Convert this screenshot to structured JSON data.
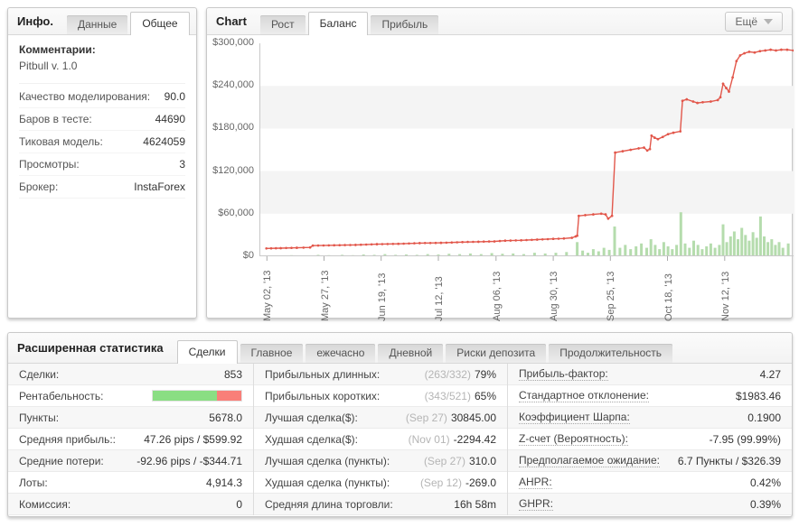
{
  "colors": {
    "balance_line": "#e2574b",
    "profit_bars": "#b5dcad",
    "band_gray": "#f4f4f4",
    "profitability_green": "#8ade83",
    "profitability_red": "#f97f79",
    "axis_line": "#c9c9c9"
  },
  "info_panel": {
    "title": "Инфо.",
    "tabs": [
      {
        "label": "Данные",
        "slug": "data",
        "active": false
      },
      {
        "label": "Общее",
        "slug": "general",
        "active": true
      }
    ],
    "comments_label": "Комментарии:",
    "comments_value": "Pitbull v. 1.0",
    "rows": [
      {
        "slug": "modeling-quality",
        "label": "Качество моделирования:",
        "value": "90.0"
      },
      {
        "slug": "bars-in-test",
        "label": "Баров в тесте:",
        "value": "44690"
      },
      {
        "slug": "tick-model",
        "label": "Тиковая модель:",
        "value": "4624059"
      },
      {
        "slug": "views",
        "label": "Просмотры:",
        "value": "3"
      },
      {
        "slug": "broker",
        "label": "Брокер:",
        "value": "InstaForex"
      }
    ]
  },
  "chart_panel": {
    "title": "Chart",
    "tabs": [
      {
        "label": "Рост",
        "slug": "growth",
        "active": false
      },
      {
        "label": "Баланс",
        "slug": "balance",
        "active": true
      },
      {
        "label": "Прибыль",
        "slug": "profit",
        "active": false
      }
    ],
    "more_button": {
      "label": "Ещё"
    }
  },
  "chart_data": {
    "type": "line",
    "title": "Баланс",
    "ylim": [
      0,
      300000
    ],
    "grid": "alternating horizontal bands",
    "legend": "none",
    "y_ticks": [
      {
        "label": "$300,000",
        "v": 300
      },
      {
        "label": "$240,000",
        "v": 240
      },
      {
        "label": "$180,000",
        "v": 180
      },
      {
        "label": "$120,000",
        "v": 120
      },
      {
        "label": "$60,000",
        "v": 60
      },
      {
        "label": "$0",
        "v": 0
      }
    ],
    "bands_k": [
      [
        240,
        180
      ],
      [
        120,
        60
      ]
    ],
    "x_ticks": [
      {
        "label": "May 02, '13",
        "f": 0.014
      },
      {
        "label": "May 27, '13",
        "f": 0.121
      },
      {
        "label": "Jun 19, '13",
        "f": 0.228
      },
      {
        "label": "Jul 12, '13",
        "f": 0.335
      },
      {
        "label": "Aug 06, '13",
        "f": 0.443
      },
      {
        "label": "Aug 30, '13",
        "f": 0.55
      },
      {
        "label": "Sep 25, '13",
        "f": 0.657
      },
      {
        "label": "Oct 18, '13",
        "f": 0.764
      },
      {
        "label": "Nov 12, '13",
        "f": 0.871
      }
    ],
    "series": [
      {
        "name": "balance-line",
        "unit": "USD_thousands",
        "points_k": [
          [
            0.013,
            11
          ],
          [
            0.04,
            11.5
          ],
          [
            0.07,
            12
          ],
          [
            0.095,
            12.5
          ],
          [
            0.1,
            15
          ],
          [
            0.14,
            15.5
          ],
          [
            0.18,
            16
          ],
          [
            0.22,
            17
          ],
          [
            0.26,
            17.5
          ],
          [
            0.3,
            18.5
          ],
          [
            0.34,
            19
          ],
          [
            0.38,
            20
          ],
          [
            0.41,
            20.5
          ],
          [
            0.44,
            21
          ],
          [
            0.46,
            22
          ],
          [
            0.49,
            22.5
          ],
          [
            0.52,
            23.5
          ],
          [
            0.55,
            24.5
          ],
          [
            0.57,
            25
          ],
          [
            0.585,
            26
          ],
          [
            0.592,
            28
          ],
          [
            0.595,
            29
          ],
          [
            0.598,
            57
          ],
          [
            0.61,
            58
          ],
          [
            0.625,
            59
          ],
          [
            0.64,
            60
          ],
          [
            0.648,
            59
          ],
          [
            0.653,
            53
          ],
          [
            0.66,
            57
          ],
          [
            0.666,
            146
          ],
          [
            0.68,
            148
          ],
          [
            0.695,
            150
          ],
          [
            0.71,
            152
          ],
          [
            0.72,
            153
          ],
          [
            0.726,
            149
          ],
          [
            0.731,
            151
          ],
          [
            0.734,
            170
          ],
          [
            0.74,
            167
          ],
          [
            0.746,
            165
          ],
          [
            0.755,
            168
          ],
          [
            0.765,
            172
          ],
          [
            0.775,
            174
          ],
          [
            0.788,
            176
          ],
          [
            0.792,
            219
          ],
          [
            0.8,
            221
          ],
          [
            0.812,
            218
          ],
          [
            0.82,
            216
          ],
          [
            0.83,
            217
          ],
          [
            0.845,
            218
          ],
          [
            0.858,
            220
          ],
          [
            0.863,
            224
          ],
          [
            0.868,
            243
          ],
          [
            0.874,
            237
          ],
          [
            0.879,
            232
          ],
          [
            0.886,
            252
          ],
          [
            0.893,
            275
          ],
          [
            0.9,
            283
          ],
          [
            0.908,
            286
          ],
          [
            0.917,
            288
          ],
          [
            0.927,
            287
          ],
          [
            0.937,
            289
          ],
          [
            0.947,
            290
          ],
          [
            0.957,
            291
          ],
          [
            0.967,
            290
          ],
          [
            0.977,
            291
          ],
          [
            0.988,
            291
          ],
          [
            1.0,
            290
          ]
        ]
      },
      {
        "name": "profit-bars",
        "unit": "USD_thousands",
        "points_k": [
          [
            0.03,
            1
          ],
          [
            0.06,
            1.5
          ],
          [
            0.09,
            1
          ],
          [
            0.11,
            2
          ],
          [
            0.13,
            1.5
          ],
          [
            0.155,
            2
          ],
          [
            0.175,
            1.5
          ],
          [
            0.195,
            2.5
          ],
          [
            0.215,
            2
          ],
          [
            0.235,
            3
          ],
          [
            0.255,
            2
          ],
          [
            0.275,
            2.5
          ],
          [
            0.295,
            2
          ],
          [
            0.315,
            3
          ],
          [
            0.335,
            2.5
          ],
          [
            0.355,
            3.5
          ],
          [
            0.375,
            3
          ],
          [
            0.395,
            4
          ],
          [
            0.415,
            3
          ],
          [
            0.435,
            4.5
          ],
          [
            0.455,
            3.5
          ],
          [
            0.475,
            4
          ],
          [
            0.495,
            3
          ],
          [
            0.515,
            5
          ],
          [
            0.535,
            4
          ],
          [
            0.555,
            5
          ],
          [
            0.575,
            6
          ],
          [
            0.595,
            20
          ],
          [
            0.605,
            8
          ],
          [
            0.615,
            5
          ],
          [
            0.625,
            10
          ],
          [
            0.635,
            7
          ],
          [
            0.645,
            12
          ],
          [
            0.655,
            9
          ],
          [
            0.665,
            42
          ],
          [
            0.675,
            12
          ],
          [
            0.685,
            16
          ],
          [
            0.695,
            10
          ],
          [
            0.705,
            14
          ],
          [
            0.715,
            18
          ],
          [
            0.725,
            12
          ],
          [
            0.733,
            24
          ],
          [
            0.741,
            16
          ],
          [
            0.749,
            10
          ],
          [
            0.757,
            20
          ],
          [
            0.765,
            14
          ],
          [
            0.773,
            10
          ],
          [
            0.781,
            16
          ],
          [
            0.789,
            62
          ],
          [
            0.797,
            18
          ],
          [
            0.805,
            12
          ],
          [
            0.813,
            22
          ],
          [
            0.821,
            16
          ],
          [
            0.829,
            10
          ],
          [
            0.837,
            14
          ],
          [
            0.845,
            18
          ],
          [
            0.853,
            12
          ],
          [
            0.861,
            16
          ],
          [
            0.868,
            45
          ],
          [
            0.875,
            20
          ],
          [
            0.882,
            28
          ],
          [
            0.889,
            35
          ],
          [
            0.896,
            24
          ],
          [
            0.903,
            40
          ],
          [
            0.91,
            30
          ],
          [
            0.917,
            22
          ],
          [
            0.924,
            34
          ],
          [
            0.931,
            26
          ],
          [
            0.938,
            56
          ],
          [
            0.945,
            28
          ],
          [
            0.952,
            20
          ],
          [
            0.959,
            24
          ],
          [
            0.966,
            16
          ],
          [
            0.973,
            20
          ],
          [
            0.98,
            12
          ],
          [
            0.99,
            18
          ]
        ]
      }
    ]
  },
  "stats_panel": {
    "title": "Расширенная статистика",
    "tabs": [
      {
        "label": "Сделки",
        "slug": "trades",
        "active": true
      },
      {
        "label": "Главное",
        "slug": "main",
        "active": false
      },
      {
        "label": "ежечасно",
        "slug": "hourly",
        "active": false
      },
      {
        "label": "Дневной",
        "slug": "daily",
        "active": false
      },
      {
        "label": "Риски депозита",
        "slug": "deposit-risks",
        "active": false
      },
      {
        "label": "Продолжительность",
        "slug": "duration",
        "active": false
      }
    ],
    "columns": {
      "left": [
        {
          "slug": "trades",
          "label": "Сделки:",
          "value": "853"
        },
        {
          "slug": "profitability",
          "label": "Рентабельность:",
          "bar": {
            "green_pct": 72,
            "red_pct": 28
          }
        },
        {
          "slug": "points",
          "label": "Пункты:",
          "value": "5678.0"
        },
        {
          "slug": "avg-profit",
          "label": "Средняя прибыль::",
          "value": "47.26 pips / $599.92"
        },
        {
          "slug": "avg-loss",
          "label": "Средние потери:",
          "value": "-92.96 pips / -$344.71"
        },
        {
          "slug": "lots",
          "label": "Лоты:",
          "value": "4,914.3"
        },
        {
          "slug": "commission",
          "label": "Комиссия:",
          "value": "0"
        }
      ],
      "middle": [
        {
          "slug": "profitable-longs",
          "label": "Прибыльных длинных:",
          "muted": "(263/332)",
          "value": "79%"
        },
        {
          "slug": "profitable-shorts",
          "label": "Прибыльных коротких:",
          "muted": "(343/521)",
          "value": "65%"
        },
        {
          "slug": "best-trade-usd",
          "label": "Лучшая сделка($):",
          "muted": "(Sep 27)",
          "value": "30845.00"
        },
        {
          "slug": "worst-trade-usd",
          "label": "Худшая сделка($):",
          "muted": "(Nov 01)",
          "value": "-2294.42"
        },
        {
          "slug": "best-trade-points",
          "label": "Лучшая сделка (пункты):",
          "muted": "(Sep 27)",
          "value": "310.0"
        },
        {
          "slug": "worst-trade-points",
          "label": "Худшая сделка (пункты):",
          "muted": "(Sep 12)",
          "value": "-269.0"
        },
        {
          "slug": "avg-trade-length",
          "label": "Средняя длина торговли:",
          "value": "16h 58m"
        }
      ],
      "right": [
        {
          "slug": "profit-factor",
          "label": "Прибыль-фактор:",
          "value": "4.27",
          "hint": true
        },
        {
          "slug": "std-deviation",
          "label": "Стандартное отклонение:",
          "value": "$1983.46",
          "hint": true
        },
        {
          "slug": "sharpe-ratio",
          "label": "Коэффициент Шарпа:",
          "value": "0.1900",
          "hint": true
        },
        {
          "slug": "z-score",
          "label": "Z-счет (Вероятность):",
          "value": "-7.95 (99.99%)",
          "hint": true
        },
        {
          "slug": "expected-payoff",
          "label": "Предполагаемое ожидание:",
          "value": "6.7 Пункты / $326.39",
          "hint": true
        },
        {
          "slug": "ahpr",
          "label": "AHPR:",
          "value": "0.42%",
          "hint": true
        },
        {
          "slug": "ghpr",
          "label": "GHPR:",
          "value": "0.39%",
          "hint": true
        }
      ]
    }
  }
}
